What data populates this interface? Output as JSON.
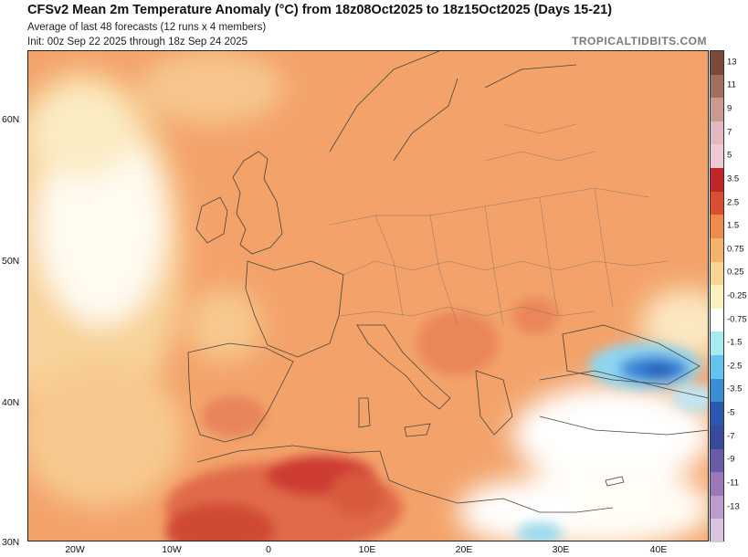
{
  "header": {
    "title": "CFSv2 Mean 2m Temperature Anomaly (°C) from 18z08Oct2025 to 18z15Oct2025 (Days 15-21)",
    "subtitle_1": "Average of last 48 forecasts (12 runs x 4 members)",
    "subtitle_2": "Init: 00z Sep 22 2025 through 18z Sep 24 2025",
    "brand": "TROPICALTIDBITS.COM"
  },
  "map": {
    "latitude_labels": [
      "60N",
      "50N",
      "40N",
      "30N"
    ],
    "longitude_labels": [
      "20W",
      "10W",
      "0",
      "10E",
      "20E",
      "30E",
      "40E"
    ],
    "colors": {
      "base_anomaly": "#f3a36a",
      "near_zero": "#ffffff",
      "sea_light": "#f6c68d",
      "warm_core": "#e06a48",
      "hot_core": "#cd3a30",
      "cool_core": "#5bb6ee",
      "cold_core": "#2e73cf",
      "border_line": "#444444"
    }
  },
  "colorbar": {
    "labels": [
      "13",
      "11",
      "9",
      "7",
      "5",
      "3.5",
      "2.5",
      "1.5",
      "0.75",
      "0.25",
      "-0.25",
      "-0.75",
      "-1.5",
      "-2.5",
      "-3.5",
      "-5",
      "-7",
      "-9",
      "-11",
      "-13"
    ],
    "colors": [
      "#7a4a3a",
      "#a0705e",
      "#c99a8f",
      "#e3b8c0",
      "#f0cad2",
      "#c0262a",
      "#d8502f",
      "#ee8a4c",
      "#f4b26c",
      "#f8d592",
      "#fbf0c0",
      "#ffffff",
      "#a6ebf0",
      "#62c4ec",
      "#3a8ed6",
      "#2958b3",
      "#384a9c",
      "#6a5aa8",
      "#9a78b8",
      "#bb9ccc",
      "#d8c4e0"
    ]
  }
}
